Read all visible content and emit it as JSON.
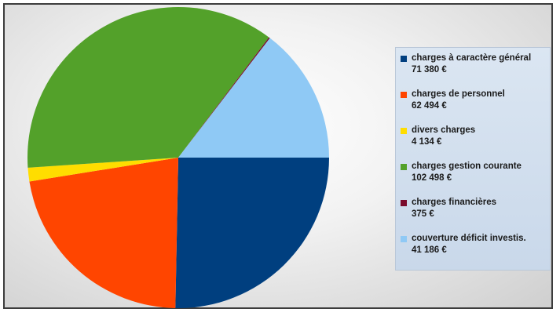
{
  "chart_data": {
    "type": "pie",
    "title": "",
    "legend_position": "right",
    "series": [
      {
        "name": "charges à caractère général",
        "value_label": "71 380 €",
        "value": 71380,
        "color": "#003f7f"
      },
      {
        "name": "charges de personnel",
        "value_label": "62 494 €",
        "value": 62494,
        "color": "#ff4500"
      },
      {
        "name": "divers charges",
        "value_label": "4 134 €",
        "value": 4134,
        "color": "#ffdd00"
      },
      {
        "name": "charges gestion courante",
        "value_label": "102 498 €",
        "value": 102498,
        "color": "#53a12a"
      },
      {
        "name": "charges financières",
        "value_label": "375 €",
        "value": 375,
        "color": "#7a0a2b"
      },
      {
        "name": "couverture déficit investis.",
        "value_label": "41 186 €",
        "value": 41186,
        "color": "#8fc9f5"
      }
    ]
  }
}
